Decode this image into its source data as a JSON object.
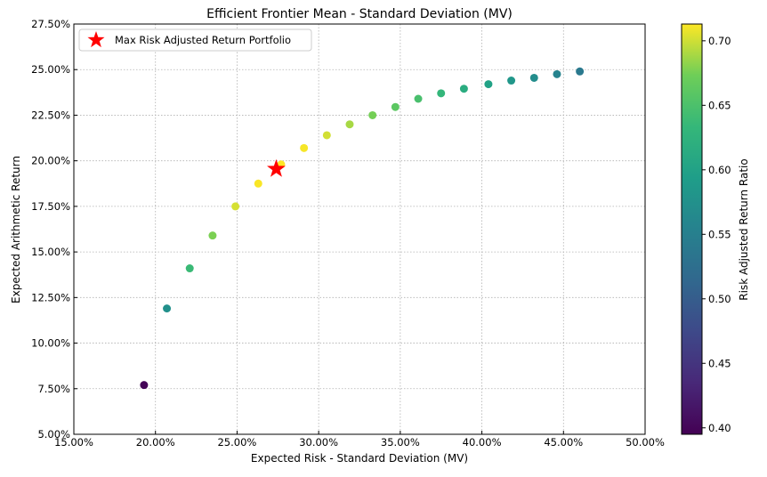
{
  "chart_data": {
    "type": "scatter",
    "title": "Efficient Frontier Mean - Standard Deviation (MV)",
    "xlabel": "Expected Risk - Standard Deviation (MV)",
    "ylabel": "Expected Arithmetic Return",
    "xlim": [
      0.15,
      0.5
    ],
    "ylim": [
      0.05,
      0.275
    ],
    "x_ticks": [
      {
        "value": 0.15,
        "label": "15.00%"
      },
      {
        "value": 0.2,
        "label": "20.00%"
      },
      {
        "value": 0.25,
        "label": "25.00%"
      },
      {
        "value": 0.3,
        "label": "30.00%"
      },
      {
        "value": 0.35,
        "label": "35.00%"
      },
      {
        "value": 0.4,
        "label": "40.00%"
      },
      {
        "value": 0.45,
        "label": "45.00%"
      },
      {
        "value": 0.5,
        "label": "50.00%"
      }
    ],
    "y_ticks": [
      {
        "value": 0.05,
        "label": "5.00%"
      },
      {
        "value": 0.075,
        "label": "7.50%"
      },
      {
        "value": 0.1,
        "label": "10.00%"
      },
      {
        "value": 0.125,
        "label": "12.50%"
      },
      {
        "value": 0.15,
        "label": "15.00%"
      },
      {
        "value": 0.175,
        "label": "17.50%"
      },
      {
        "value": 0.2,
        "label": "20.00%"
      },
      {
        "value": 0.225,
        "label": "22.50%"
      },
      {
        "value": 0.25,
        "label": "25.00%"
      },
      {
        "value": 0.275,
        "label": "27.50%"
      }
    ],
    "grid": true,
    "legend_position": "top-left",
    "legend_label": "Max Risk Adjusted Return Portfolio",
    "colorbar": {
      "label": "Risk Adjusted Return Ratio",
      "range": [
        0.395,
        0.713
      ],
      "colormap": "viridis",
      "ticks": [
        {
          "value": 0.4,
          "label": "0.40"
        },
        {
          "value": 0.45,
          "label": "0.45"
        },
        {
          "value": 0.5,
          "label": "0.50"
        },
        {
          "value": 0.55,
          "label": "0.55"
        },
        {
          "value": 0.6,
          "label": "0.60"
        },
        {
          "value": 0.65,
          "label": "0.65"
        },
        {
          "value": 0.7,
          "label": "0.70"
        }
      ]
    },
    "points": [
      {
        "x": 0.193,
        "y": 0.077,
        "ratio": 0.398
      },
      {
        "x": 0.207,
        "y": 0.119,
        "ratio": 0.574
      },
      {
        "x": 0.221,
        "y": 0.141,
        "ratio": 0.637
      },
      {
        "x": 0.235,
        "y": 0.159,
        "ratio": 0.677
      },
      {
        "x": 0.249,
        "y": 0.175,
        "ratio": 0.702
      },
      {
        "x": 0.263,
        "y": 0.1875,
        "ratio": 0.712
      },
      {
        "x": 0.277,
        "y": 0.198,
        "ratio": 0.713
      },
      {
        "x": 0.291,
        "y": 0.207,
        "ratio": 0.711
      },
      {
        "x": 0.305,
        "y": 0.214,
        "ratio": 0.701
      },
      {
        "x": 0.319,
        "y": 0.22,
        "ratio": 0.689
      },
      {
        "x": 0.333,
        "y": 0.225,
        "ratio": 0.675
      },
      {
        "x": 0.347,
        "y": 0.2295,
        "ratio": 0.661
      },
      {
        "x": 0.361,
        "y": 0.234,
        "ratio": 0.648
      },
      {
        "x": 0.375,
        "y": 0.237,
        "ratio": 0.632
      },
      {
        "x": 0.389,
        "y": 0.2395,
        "ratio": 0.616
      },
      {
        "x": 0.404,
        "y": 0.242,
        "ratio": 0.6
      },
      {
        "x": 0.418,
        "y": 0.244,
        "ratio": 0.584
      },
      {
        "x": 0.432,
        "y": 0.2455,
        "ratio": 0.569
      },
      {
        "x": 0.446,
        "y": 0.2475,
        "ratio": 0.555
      },
      {
        "x": 0.46,
        "y": 0.249,
        "ratio": 0.541
      }
    ],
    "max_portfolio": {
      "x": 0.274,
      "y": 0.1955,
      "color": "#ff0000"
    }
  }
}
